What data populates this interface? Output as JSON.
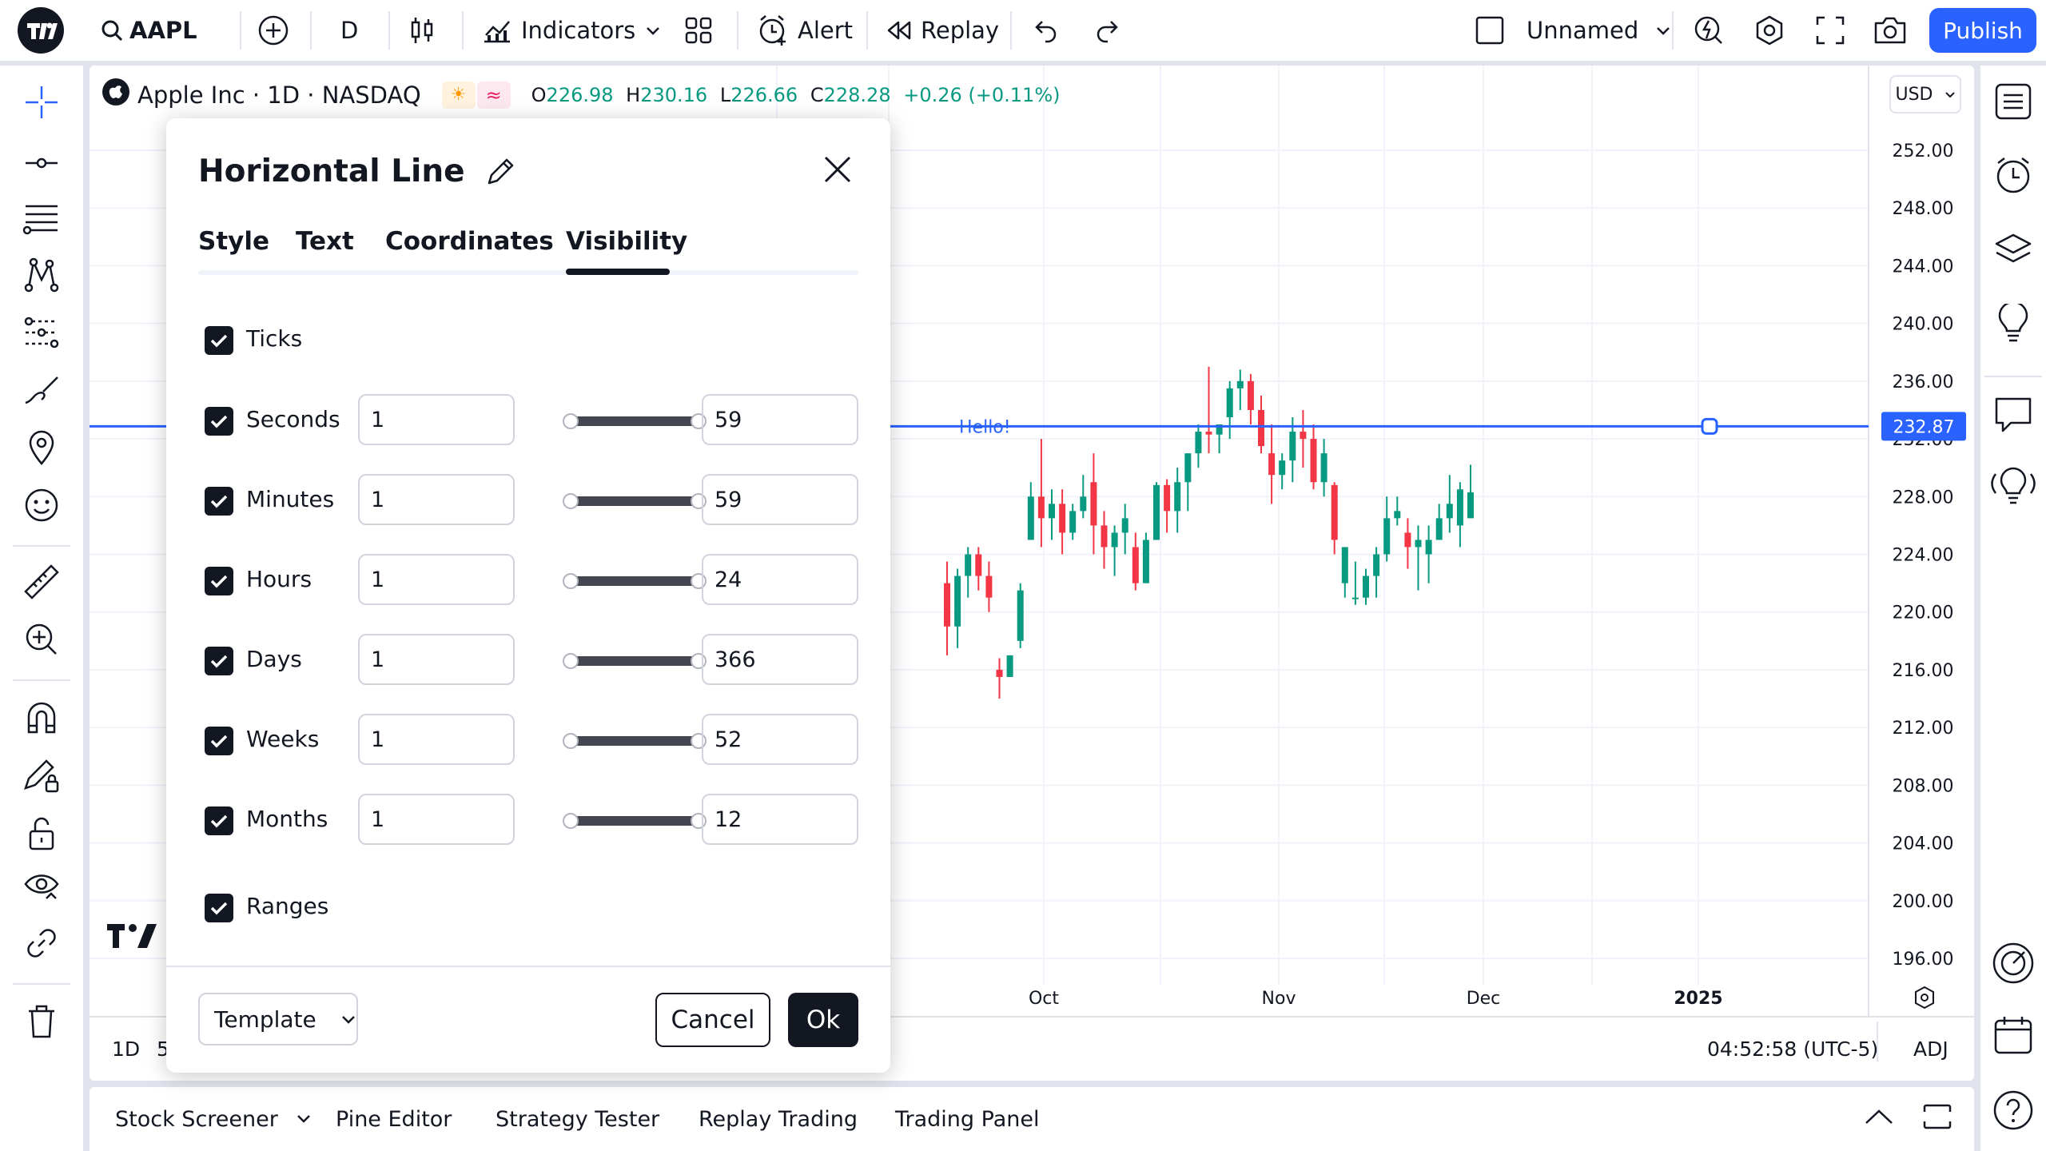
{
  "topbar": {
    "symbol": "AAPL",
    "interval": "D",
    "indicators_label": "Indicators",
    "alert_label": "Alert",
    "replay_label": "Replay",
    "layout_name": "Unnamed",
    "publish_label": "Publish"
  },
  "legend": {
    "title": "Apple Inc · 1D · NASDAQ",
    "open_label": "O",
    "open": "226.98",
    "high_label": "H",
    "high": "230.16",
    "low_label": "L",
    "low": "226.66",
    "close_label": "C",
    "close": "228.28",
    "change": "+0.26 (+0.11%)"
  },
  "currency": "USD",
  "chart": {
    "price_axis": [
      "252.00",
      "248.00",
      "244.00",
      "240.00",
      "236.00",
      "232.00",
      "228.00",
      "224.00",
      "220.00",
      "216.00",
      "212.00",
      "208.00",
      "204.00",
      "200.00",
      "196.00"
    ],
    "time_axis": [
      "Oct",
      "Nov",
      "Dec",
      "2025"
    ],
    "hline_price": "232.87",
    "hline_text": "Hello!",
    "colors": {
      "up": "#089981",
      "down": "#f23645",
      "line": "#2962ff"
    }
  },
  "statusbar": {
    "range_1d": "1D",
    "range_5": "5",
    "clock": "04:52:58 (UTC-5)",
    "adj": "ADJ"
  },
  "bottom_tabs": [
    "Stock Screener",
    "Pine Editor",
    "Strategy Tester",
    "Replay Trading",
    "Trading Panel"
  ],
  "dialog": {
    "title": "Horizontal Line",
    "tabs": [
      "Style",
      "Text",
      "Coordinates",
      "Visibility"
    ],
    "active_tab": "Visibility",
    "ticks_label": "Ticks",
    "rows": [
      {
        "label": "Seconds",
        "from": "1",
        "to": "59"
      },
      {
        "label": "Minutes",
        "from": "1",
        "to": "59"
      },
      {
        "label": "Hours",
        "from": "1",
        "to": "24"
      },
      {
        "label": "Days",
        "from": "1",
        "to": "366"
      },
      {
        "label": "Weeks",
        "from": "1",
        "to": "52"
      },
      {
        "label": "Months",
        "from": "1",
        "to": "12"
      }
    ],
    "ranges_label": "Ranges",
    "template_label": "Template",
    "cancel_label": "Cancel",
    "ok_label": "Ok"
  }
}
